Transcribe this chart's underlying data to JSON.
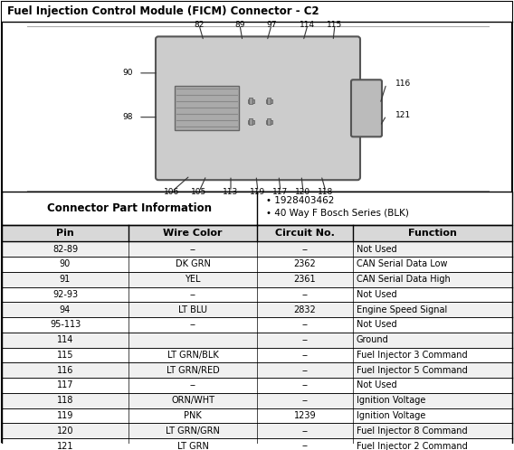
{
  "title": "Fuel Injection Control Module (FICM) Connector - C2",
  "connector_info_label": "Connector Part Information",
  "connector_info_bullets": [
    "1928403462",
    "40 Way F Bosch Series (BLK)"
  ],
  "table_headers": [
    "Pin",
    "Wire Color",
    "Circuit No.",
    "Function"
  ],
  "table_rows": [
    [
      "82-89",
      "--",
      "--",
      "Not Used"
    ],
    [
      "90",
      "DK GRN",
      "2362",
      "CAN Serial Data Low"
    ],
    [
      "91",
      "YEL",
      "2361",
      "CAN Serial Data High"
    ],
    [
      "92-93",
      "--",
      "--",
      "Not Used"
    ],
    [
      "94",
      "LT BLU",
      "2832",
      "Engine Speed Signal"
    ],
    [
      "95-113",
      "--",
      "--",
      "Not Used"
    ],
    [
      "114",
      "",
      "--",
      "Ground"
    ],
    [
      "115",
      "LT GRN/BLK",
      "--",
      "Fuel Injector 3 Command"
    ],
    [
      "116",
      "LT GRN/RED",
      "--",
      "Fuel Injector 5 Command"
    ],
    [
      "117",
      "--",
      "--",
      "Not Used"
    ],
    [
      "118",
      "ORN/WHT",
      "--",
      "Ignition Voltage"
    ],
    [
      "119",
      "PNK",
      "1239",
      "Ignition Voltage"
    ],
    [
      "120",
      "LT GRN/GRN",
      "--",
      "Fuel Injector 8 Command"
    ],
    [
      "121",
      "LT GRN",
      "--",
      "Fuel Injector 2 Command"
    ]
  ],
  "pin_labels_top": [
    "82",
    "89",
    "97",
    "114",
    "115"
  ],
  "pin_labels_left": [
    "90",
    "98"
  ],
  "pin_labels_right": [
    "116",
    "121"
  ],
  "pin_labels_bottom": [
    "106",
    "105",
    "113",
    "119",
    "117",
    "120",
    "118"
  ],
  "bg_color": "#f5f5f5",
  "header_bg": "#d0d0d0",
  "border_color": "#000000",
  "text_color": "#000000"
}
